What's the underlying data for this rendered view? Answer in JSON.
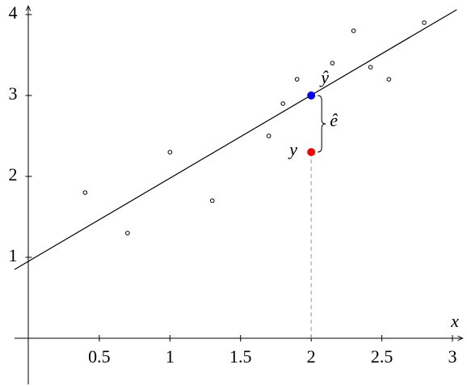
{
  "chart_data": {
    "type": "scatter",
    "x_label": "x",
    "xlim": [
      -0.1,
      3.08
    ],
    "ylim": [
      -0.57,
      4.1
    ],
    "xticks": [
      0.5,
      1,
      1.5,
      2,
      2.5,
      3
    ],
    "yticks": [
      1,
      2,
      3,
      4
    ],
    "series": [
      {
        "color": "#000000",
        "x": [
          0.4,
          0.7,
          1.0,
          1.3,
          1.7,
          1.8,
          1.9,
          2.15,
          2.3,
          2.42,
          2.55,
          2.8
        ],
        "values": [
          1.8,
          1.3,
          2.3,
          1.7,
          2.5,
          2.9,
          3.2,
          3.4,
          3.8,
          3.35,
          3.2,
          3.9
        ]
      }
    ],
    "fit_line": {
      "color": "#000000",
      "x": [
        -0.1,
        3.03
      ],
      "values": [
        0.85,
        4.06
      ]
    },
    "points": [
      {
        "label": "ŷ",
        "x": 2,
        "y": 3.0,
        "color": "#0000ff"
      },
      {
        "label": "y",
        "x": 2,
        "y": 2.3,
        "color": "#ff0000"
      }
    ],
    "residual_label": "ê"
  }
}
